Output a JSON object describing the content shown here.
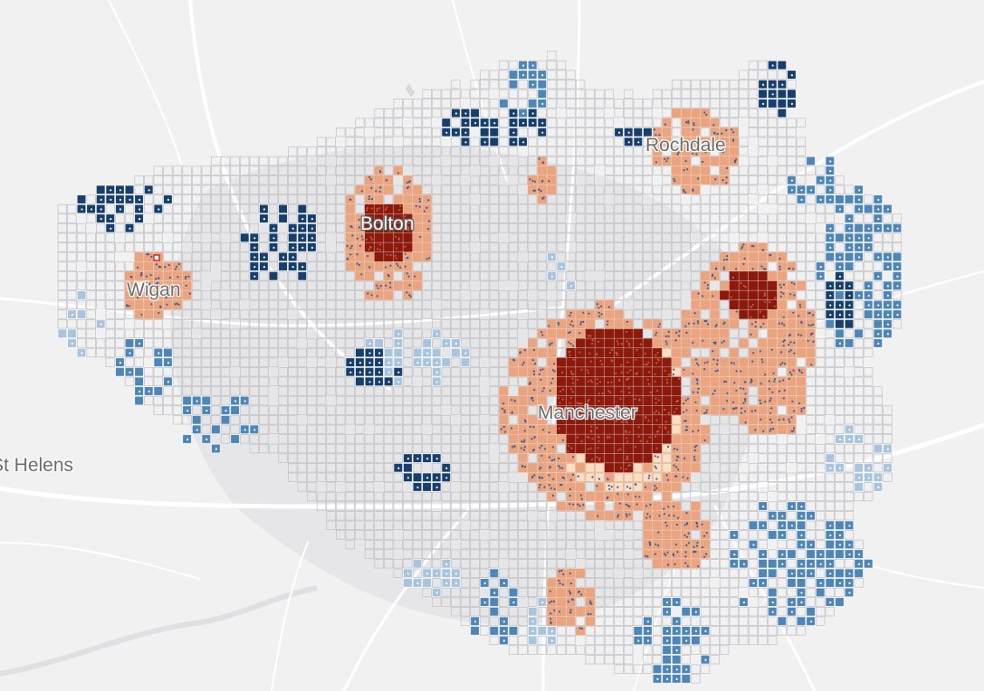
{
  "map": {
    "labels": {
      "manchester": "Manchester",
      "bolton": "Bolton",
      "wigan": "Wigan",
      "rochdale": "Rochdale",
      "st_helens": "St Helens"
    },
    "colors": {
      "background": "#f1f1f2",
      "land_shade": "#e3e3e5",
      "road": "#ffffff",
      "grid_empty": "#c2c2c6",
      "hotspot_99": "#8b1a0d",
      "hotspot_95": "#eaa47f",
      "hotspot_90": "#f7e0c6",
      "coldspot_99": "#173f6e",
      "coldspot_95": "#4f86b8",
      "coldspot_90": "#a9c4dd",
      "point": "#3f5f98"
    },
    "marker": {
      "name": "selected-cell-marker",
      "color": "#d7261e"
    }
  }
}
